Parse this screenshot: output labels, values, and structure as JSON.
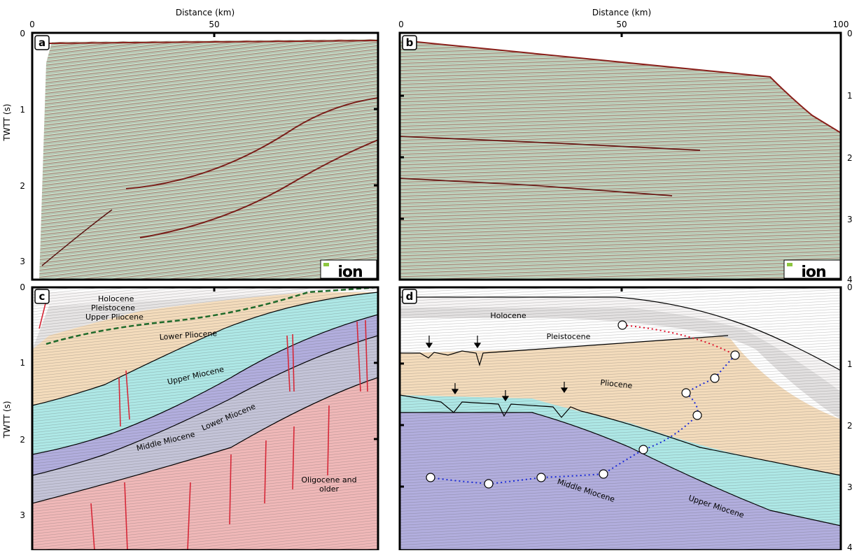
{
  "figure": {
    "top_left": {
      "xaxis_title": "Distance (km)",
      "x_ticks": [
        "0",
        "50"
      ],
      "yaxis_title": "TWTT (s)",
      "y_ticks": [
        "0",
        "1",
        "2",
        "3"
      ]
    },
    "top_right": {
      "xaxis_title": "Distance (km)",
      "x_ticks": [
        "0",
        "50",
        "100"
      ],
      "y_ticks": [
        "0",
        "1",
        "2",
        "3",
        "4"
      ]
    },
    "bottom_left": {
      "yaxis_title": "TWTT (s)",
      "y_ticks": [
        "0",
        "1",
        "2",
        "3"
      ]
    },
    "bottom_right": {
      "y_ticks": [
        "0",
        "1",
        "2",
        "3",
        "4"
      ]
    },
    "panels": {
      "a": {
        "letter": "a",
        "logo": "ion"
      },
      "b": {
        "letter": "b",
        "logo": "ion"
      },
      "c": {
        "letter": "c",
        "units": [
          "Holocene",
          "Pleistocene",
          "Upper Pliocene",
          "Lower Pliocene",
          "Upper Miocene",
          "Middle Miocene",
          "Lower Miocene",
          "Oligocene and",
          "older"
        ]
      },
      "d": {
        "letter": "d",
        "units": [
          "Holocene",
          "Pleistocene",
          "Pliocene",
          "Middle Miocene",
          "Upper Miocene"
        ]
      }
    },
    "colors": {
      "seismic_bg": "#c6dcc6",
      "holocene": "#f4f2f2",
      "pleistocene": "#e2e0e0",
      "pliocene": "#f4dcbc",
      "upper_miocene": "#aee8e6",
      "middle_miocene": "#b2aede",
      "lower_miocene": "#c2c2d6",
      "oligocene": "#f0b8b8",
      "fault": "#d62838",
      "marker_red": "#e0102a",
      "marker_blue": "#1a2ad8"
    }
  }
}
